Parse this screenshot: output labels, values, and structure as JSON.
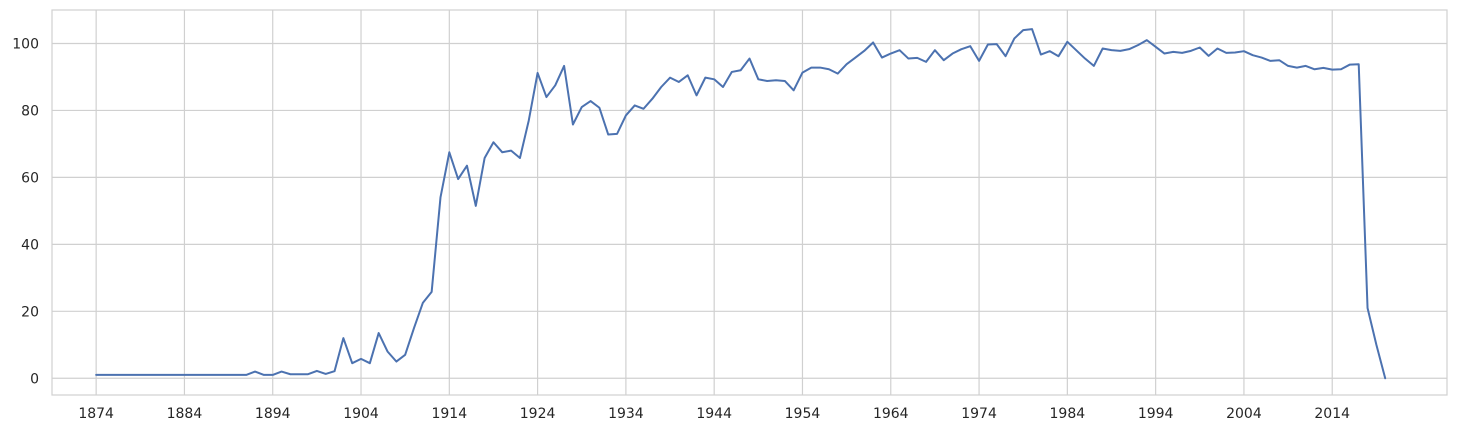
{
  "chart_data": {
    "type": "line",
    "title": "",
    "xlabel": "",
    "ylabel": "",
    "xlim": [
      1869,
      2027
    ],
    "ylim": [
      -5,
      110
    ],
    "grid": true,
    "x_ticks": [
      1874,
      1884,
      1894,
      1904,
      1914,
      1924,
      1934,
      1944,
      1954,
      1964,
      1974,
      1984,
      1994,
      2004,
      2014
    ],
    "x_tick_labels": [
      "1874",
      "1884",
      "1894",
      "1904",
      "1914",
      "1924",
      "1934",
      "1944",
      "1954",
      "1964",
      "1974",
      "1984",
      "1994",
      "2004",
      "2014"
    ],
    "y_ticks": [
      0,
      20,
      40,
      60,
      80,
      100
    ],
    "y_tick_labels": [
      "0",
      "20",
      "40",
      "60",
      "80",
      "100"
    ],
    "series": [
      {
        "color": "#4c72b0",
        "x": [
          1874,
          1875,
          1876,
          1877,
          1878,
          1879,
          1880,
          1881,
          1882,
          1883,
          1884,
          1885,
          1886,
          1887,
          1888,
          1889,
          1890,
          1891,
          1892,
          1893,
          1894,
          1895,
          1896,
          1897,
          1898,
          1899,
          1900,
          1901,
          1902,
          1903,
          1904,
          1905,
          1906,
          1907,
          1908,
          1909,
          1910,
          1911,
          1912,
          1913,
          1914,
          1915,
          1916,
          1917,
          1918,
          1919,
          1920,
          1921,
          1922,
          1923,
          1924,
          1925,
          1926,
          1927,
          1928,
          1929,
          1930,
          1931,
          1932,
          1933,
          1934,
          1935,
          1936,
          1937,
          1938,
          1939,
          1940,
          1941,
          1942,
          1943,
          1944,
          1945,
          1946,
          1947,
          1948,
          1949,
          1950,
          1951,
          1952,
          1953,
          1954,
          1955,
          1956,
          1957,
          1958,
          1959,
          1960,
          1961,
          1962,
          1963,
          1964,
          1965,
          1966,
          1967,
          1968,
          1969,
          1970,
          1971,
          1972,
          1973,
          1974,
          1975,
          1976,
          1977,
          1978,
          1979,
          1980,
          1981,
          1982,
          1983,
          1984,
          1985,
          1986,
          1987,
          1988,
          1989,
          1990,
          1991,
          1992,
          1993,
          1994,
          1995,
          1996,
          1997,
          1998,
          1999,
          2000,
          2001,
          2002,
          2003,
          2004,
          2005,
          2006,
          2007,
          2008,
          2009,
          2010,
          2011,
          2012,
          2013,
          2014,
          2015,
          2016,
          2017,
          2018,
          2019,
          2020
        ],
        "values": [
          1,
          1,
          1,
          1,
          1,
          1,
          1,
          1,
          1,
          1,
          1,
          1,
          1,
          1,
          1,
          1,
          1,
          1,
          2,
          1,
          1,
          2,
          1.2,
          1.2,
          1.2,
          2.2,
          1.3,
          2.1,
          12,
          4.5,
          5.8,
          4.5,
          13.5,
          8,
          5,
          7,
          15,
          22.5,
          25.8,
          54,
          67.5,
          59.5,
          63.5,
          51.5,
          65.8,
          70.5,
          67.5,
          68,
          65.8,
          77,
          91.2,
          84,
          87.5,
          93.3,
          75.8,
          81,
          82.8,
          80.8,
          72.8,
          73,
          78.5,
          81.5,
          80.5,
          83.5,
          87,
          89.8,
          88.5,
          90.5,
          84.5,
          89.8,
          89.3,
          87,
          91.5,
          92,
          95.5,
          89.3,
          88.8,
          89,
          88.8,
          86,
          91.3,
          92.8,
          92.8,
          92.3,
          91,
          93.8,
          95.8,
          97.8,
          100.3,
          95.8,
          97,
          98,
          95.5,
          95.7,
          94.5,
          98,
          95,
          97,
          98.3,
          99.2,
          94.8,
          99.7,
          99.8,
          96.2,
          101.5,
          104,
          104.3,
          96.7,
          97.7,
          96.2,
          100.5,
          98,
          95.5,
          93.3,
          98.5,
          98,
          97.8,
          98.3,
          99.5,
          101,
          99,
          97,
          97.5,
          97.2,
          97.8,
          98.8,
          96.3,
          98.5,
          97.2,
          97.3,
          97.7,
          96.5,
          95.8,
          94.8,
          95,
          93.3,
          92.8,
          93.3,
          92.3,
          92.7,
          92.2,
          92.3,
          93.7,
          93.8,
          21,
          10,
          0
        ]
      }
    ]
  }
}
